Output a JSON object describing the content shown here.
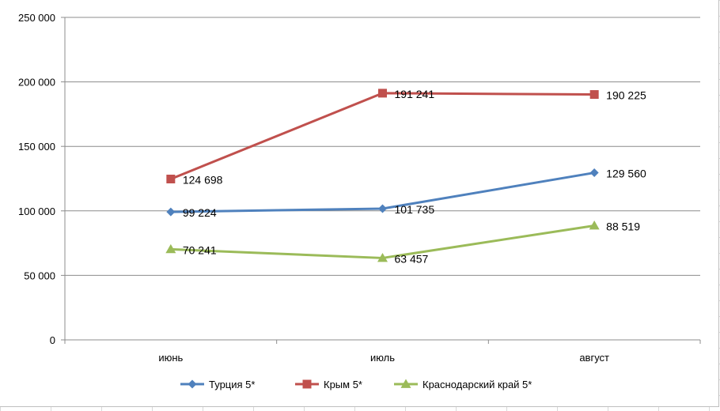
{
  "chart_data": {
    "type": "line",
    "categories": [
      "июнь",
      "июль",
      "август"
    ],
    "series": [
      {
        "name": "Турция 5*",
        "values": [
          99224,
          101735,
          129560
        ],
        "labels": [
          "99 224",
          "101 735",
          "129 560"
        ],
        "color": "#4f81bd",
        "marker": "diamond"
      },
      {
        "name": "Крым 5*",
        "values": [
          124698,
          191241,
          190225
        ],
        "labels": [
          "124 698",
          "191 241",
          "190 225"
        ],
        "color": "#c0504d",
        "marker": "square"
      },
      {
        "name": "Краснодарский край 5*",
        "values": [
          70241,
          63457,
          88519
        ],
        "labels": [
          "70 241",
          "63 457",
          "88 519"
        ],
        "color": "#9bbb59",
        "marker": "triangle"
      }
    ],
    "ylim": [
      0,
      250000
    ],
    "yticks": [
      0,
      50000,
      100000,
      150000,
      200000,
      250000
    ],
    "ytick_labels": [
      "0",
      "50 000",
      "100 000",
      "150 000",
      "200 000",
      "250 000"
    ],
    "grid": true,
    "legend_position": "bottom"
  }
}
